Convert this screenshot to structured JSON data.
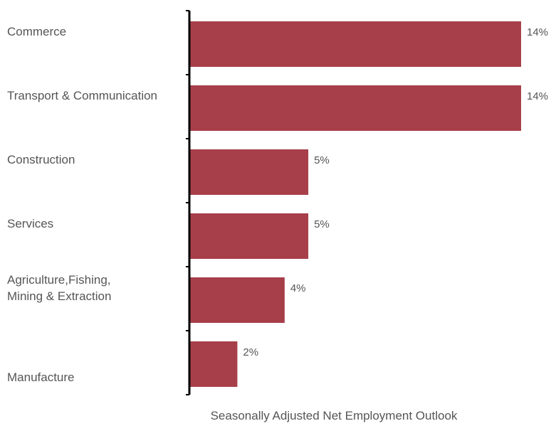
{
  "chart_data": {
    "type": "bar",
    "orientation": "horizontal",
    "categories": [
      [
        "Commerce"
      ],
      [
        "Transport & Communication"
      ],
      [
        "Construction"
      ],
      [
        "Services"
      ],
      [
        "Agriculture,Fishing,",
        "Mining & Extraction"
      ],
      [
        "Manufacture"
      ]
    ],
    "values": [
      14,
      14,
      5,
      5,
      4,
      2
    ],
    "value_labels": [
      "14%",
      "14%",
      "5%",
      "5%",
      "4%",
      "2%"
    ],
    "xlabel": "Seasonally Adjusted Net Employment Outlook",
    "ylabel": "",
    "title": "",
    "xlim": [
      0,
      14
    ],
    "grid": false,
    "bar_color": "#a73f4a",
    "axis_color": "#000000",
    "text_color": "#555555"
  }
}
